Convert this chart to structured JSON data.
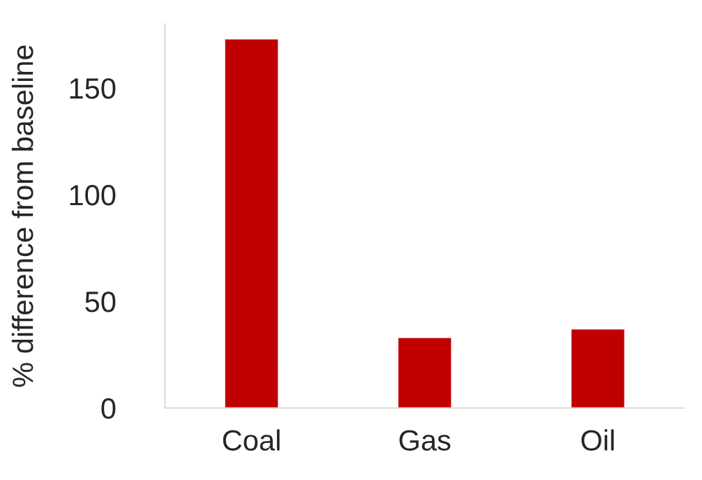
{
  "chart_data": {
    "type": "bar",
    "ylabel": "% difference from baseline",
    "categories": [
      "Coal",
      "Gas",
      "Oil"
    ],
    "values": [
      173,
      33,
      37
    ],
    "color": "#c00000",
    "ylim": [
      0,
      180
    ],
    "yticks": [
      0,
      50,
      100,
      150
    ],
    "grid": false,
    "legend": false
  }
}
